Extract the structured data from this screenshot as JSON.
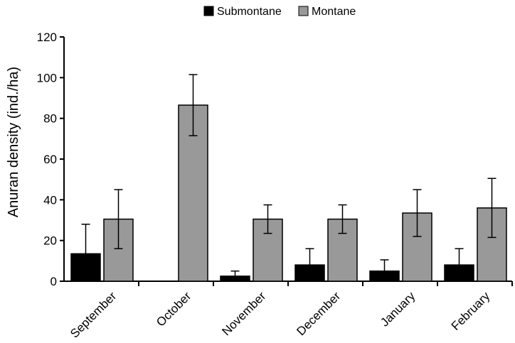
{
  "chart_data": {
    "type": "bar",
    "categories": [
      "September",
      "October",
      "November",
      "December",
      "January",
      "February"
    ],
    "series": [
      {
        "name": "Submontane",
        "color": "#000000",
        "values": [
          13.5,
          0,
          2.5,
          8,
          5,
          8
        ],
        "error": [
          14.5,
          0,
          2.5,
          8,
          5.5,
          8
        ]
      },
      {
        "name": "Montane",
        "color": "#999999",
        "values": [
          30.5,
          86.5,
          30.5,
          30.5,
          33.5,
          36
        ],
        "error": [
          14.5,
          15,
          7,
          7,
          11.5,
          14.5
        ]
      }
    ],
    "ylabel": "Anuran density (ind./ha)",
    "xlabel": "",
    "ylim": [
      0,
      120
    ],
    "yticks": [
      0,
      20,
      40,
      60,
      80,
      100,
      120
    ],
    "legend_position": "top-center",
    "grid": false
  }
}
